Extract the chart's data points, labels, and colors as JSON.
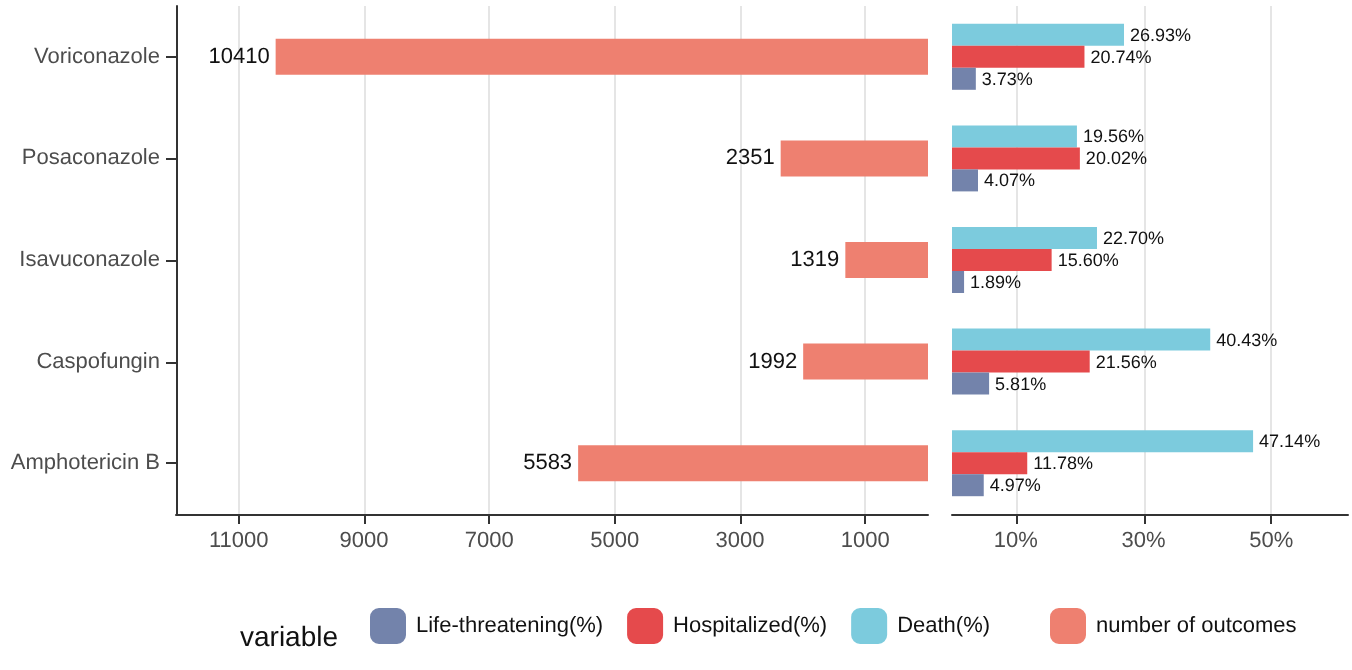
{
  "chart_data": [
    {
      "type": "bar",
      "orientation": "horizontal",
      "categories": [
        "Voriconazole",
        "Posaconazole",
        "Isavuconazole",
        "Caspofungin",
        "Amphotericin B"
      ],
      "series": [
        {
          "name": "number of outcomes",
          "color": "#ee8070",
          "values": [
            10410,
            2351,
            1319,
            1992,
            5583
          ]
        }
      ],
      "xlim": [
        12000,
        0
      ],
      "xticks": [
        11000,
        9000,
        7000,
        5000,
        3000,
        1000
      ],
      "grid": "x",
      "data_labels": true,
      "legend": "bottom",
      "legend_title": "variable"
    },
    {
      "type": "bar",
      "orientation": "horizontal",
      "categories": [
        null,
        null,
        null,
        null,
        null
      ],
      "series": [
        {
          "name": "Life-threatening(%)",
          "color": "#7383ab",
          "values": [
            3.73,
            4.07,
            1.89,
            5.81,
            4.97
          ],
          "value_labels": [
            "3.73%",
            "4.07%",
            "1.89%",
            "5.81%",
            "4.97%"
          ]
        },
        {
          "name": "Hospitalized(%)",
          "color": "#e54a4c",
          "values": [
            20.74,
            20.02,
            15.6,
            21.56,
            11.78
          ],
          "value_labels": [
            "20.74%",
            "20.02%",
            "15.60%",
            "21.56%",
            "11.78%"
          ]
        },
        {
          "name": "Death(%)",
          "color": "#7ccbdd",
          "values": [
            26.93,
            19.56,
            22.7,
            40.43,
            47.14
          ],
          "value_labels": [
            "26.93%",
            "19.56%",
            "22.70%",
            "40.43%",
            "47.14%"
          ]
        }
      ],
      "xlim": [
        0,
        62
      ],
      "xticks": [
        {
          "value": 10,
          "label": "10%"
        },
        {
          "value": 30,
          "label": "30%"
        },
        {
          "value": 50,
          "label": "50%"
        }
      ],
      "grid": "x",
      "tick_labels": "x",
      "legend": "bottom"
    }
  ]
}
